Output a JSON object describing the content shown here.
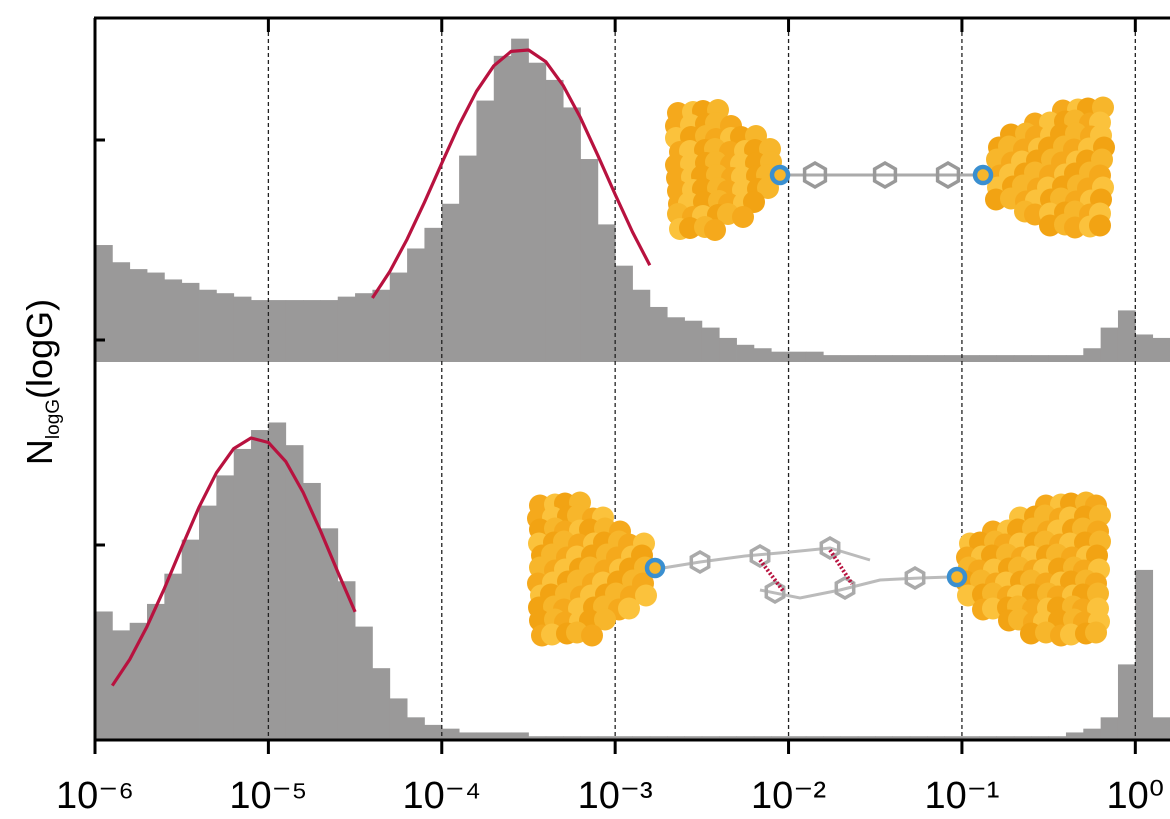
{
  "figure": {
    "xscale": "log",
    "grid": true,
    "xticks": [
      {
        "value": 1e-06,
        "label": "10⁻⁶"
      },
      {
        "value": 1e-05,
        "label": "10⁻⁵"
      },
      {
        "value": 0.0001,
        "label": "10⁻⁴"
      },
      {
        "value": 0.001,
        "label": "10⁻³"
      },
      {
        "value": 0.01,
        "label": "10⁻²"
      },
      {
        "value": 0.1,
        "label": "10⁻¹"
      },
      {
        "value": 1,
        "label": "10⁰"
      }
    ],
    "ylabel": {
      "text": "N",
      "subscript": "logG",
      "suffix": "(logG)"
    }
  },
  "chart_data": [
    {
      "type": "histogram",
      "color": "#9a9999",
      "xlim": [
        1e-06,
        1.585
      ],
      "ylim": [
        0,
        100
      ],
      "bins": [
        1e-06,
        1.259e-06,
        1.585e-06,
        1.995e-06,
        2.512e-06,
        3.162e-06,
        3.981e-06,
        5.012e-06,
        6.31e-06,
        7.943e-06,
        1e-05,
        1.259e-05,
        1.585e-05,
        1.995e-05,
        2.512e-05,
        3.162e-05,
        3.981e-05,
        5.012e-05,
        6.31e-05,
        7.943e-05,
        0.0001,
        0.0001259,
        0.0001585,
        0.0001995,
        0.0002512,
        0.0003162,
        0.0003981,
        0.0005012,
        0.000631,
        0.0007943,
        0.001,
        0.001259,
        0.001585,
        0.001995,
        0.002512,
        0.003162,
        0.003981,
        0.005012,
        0.00631,
        0.007943,
        0.01,
        0.01259,
        0.01585,
        0.01995,
        0.02512,
        0.03162,
        0.03981,
        0.05012,
        0.0631,
        0.07943,
        0.1,
        0.1259,
        0.1585,
        0.1995,
        0.2512,
        0.3162,
        0.3981,
        0.5012,
        0.631,
        0.7943,
        1,
        1.259,
        1.585
      ],
      "counts": [
        34,
        29,
        27,
        26,
        24,
        23,
        21,
        20,
        19,
        18,
        18,
        18,
        18,
        18,
        19,
        20,
        21,
        26,
        33,
        39,
        46,
        60,
        76,
        89,
        94,
        87,
        82,
        74,
        59,
        40,
        28,
        21,
        16,
        13,
        12,
        10,
        7,
        5,
        4,
        3,
        3,
        3,
        2,
        2,
        2,
        2,
        2,
        2,
        2,
        2,
        2,
        2,
        2,
        2,
        2,
        2,
        2,
        4,
        10,
        15,
        8,
        7
      ],
      "fit": {
        "color": "#b8123f",
        "x": [
          3.981e-05,
          5.012e-05,
          6.31e-05,
          7.943e-05,
          0.0001,
          0.0001259,
          0.0001585,
          0.0001995,
          0.0002512,
          0.0003162,
          0.0003981,
          0.0005012,
          0.000631,
          0.0007943,
          0.001,
          0.001259,
          0.001585
        ],
        "y": [
          18.6,
          26.3,
          35.7,
          46.4,
          57.8,
          68.9,
          78.7,
          86.1,
          90.3,
          90.7,
          87.3,
          80.4,
          71.0,
          60.1,
          48.7,
          37.8,
          28.1
        ]
      }
    },
    {
      "type": "histogram",
      "color": "#9a9999",
      "xlim": [
        1e-06,
        1.585
      ],
      "ylim": [
        0,
        100
      ],
      "bins": [
        1e-06,
        1.259e-06,
        1.585e-06,
        1.995e-06,
        2.512e-06,
        3.162e-06,
        3.981e-06,
        5.012e-06,
        6.31e-06,
        7.943e-06,
        1e-05,
        1.259e-05,
        1.585e-05,
        1.995e-05,
        2.512e-05,
        3.162e-05,
        3.981e-05,
        5.012e-05,
        6.31e-05,
        7.943e-05,
        0.0001,
        0.0001259,
        0.0001585,
        0.0001995,
        0.0002512,
        0.0003162,
        0.0003981,
        0.0005012,
        0.000631,
        0.0007943,
        0.001,
        0.001259,
        0.001585,
        0.001995,
        0.002512,
        0.003162,
        0.003981,
        0.005012,
        0.00631,
        0.007943,
        0.01,
        0.01259,
        0.01585,
        0.01995,
        0.02512,
        0.03162,
        0.03981,
        0.05012,
        0.0631,
        0.07943,
        0.1,
        0.1259,
        0.1585,
        0.1995,
        0.2512,
        0.3162,
        0.3981,
        0.5012,
        0.631,
        0.7943,
        1,
        1.259,
        1.585
      ],
      "counts": [
        34,
        29,
        31,
        36,
        44,
        53,
        62,
        70,
        77,
        82,
        84,
        78,
        68,
        56,
        42,
        30,
        19,
        11,
        6,
        4,
        3,
        2,
        2,
        2,
        2,
        1,
        1,
        1,
        1,
        1,
        1,
        1,
        1,
        1,
        1,
        1,
        1,
        1,
        1,
        1,
        1,
        1,
        1,
        1,
        1,
        1,
        1,
        1,
        1,
        1,
        1,
        1,
        1,
        1,
        1,
        1,
        2,
        3,
        6,
        20,
        45,
        6
      ],
      "fit": {
        "color": "#b8123f",
        "x": [
          1.259e-06,
          1.585e-06,
          1.995e-06,
          2.512e-06,
          3.162e-06,
          3.981e-06,
          5.012e-06,
          6.31e-06,
          7.943e-06,
          1e-05,
          1.259e-05,
          1.585e-05,
          1.995e-05,
          2.512e-05,
          3.162e-05
        ],
        "y": [
          14.4,
          21.3,
          30.0,
          40.1,
          51.0,
          61.6,
          70.7,
          77.1,
          79.9,
          78.7,
          73.7,
          65.5,
          55.4,
          44.5,
          33.9
        ]
      }
    }
  ]
}
